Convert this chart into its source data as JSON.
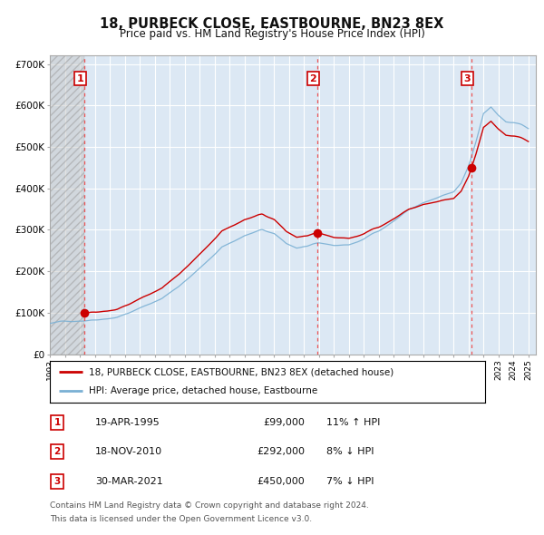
{
  "title": "18, PURBECK CLOSE, EASTBOURNE, BN23 8EX",
  "subtitle": "Price paid vs. HM Land Registry's House Price Index (HPI)",
  "transactions": [
    {
      "num": 1,
      "date_str": "19-APR-1995",
      "price": 99000,
      "pct": "11%",
      "dir": "↑",
      "x_year": 1995.3
    },
    {
      "num": 2,
      "date_str": "18-NOV-2010",
      "price": 292000,
      "pct": "8%",
      "dir": "↓",
      "x_year": 2010.9
    },
    {
      "num": 3,
      "date_str": "30-MAR-2021",
      "price": 450000,
      "pct": "7%",
      "dir": "↓",
      "x_year": 2021.2
    }
  ],
  "legend_property_label": "18, PURBECK CLOSE, EASTBOURNE, BN23 8EX (detached house)",
  "legend_hpi_label": "HPI: Average price, detached house, Eastbourne",
  "footer_line1": "Contains HM Land Registry data © Crown copyright and database right 2024.",
  "footer_line2": "This data is licensed under the Open Government Licence v3.0.",
  "ylim": [
    0,
    720000
  ],
  "yticks": [
    0,
    100000,
    200000,
    300000,
    400000,
    500000,
    600000,
    700000
  ],
  "xlim_start": 1993.0,
  "xlim_end": 2025.5,
  "hatch_end_year": 1995.3,
  "property_color": "#cc0000",
  "hpi_color": "#7ab0d4",
  "hatch_color": "#bbbbbb",
  "plot_bg": "#dce8f4",
  "grid_color": "#ffffff",
  "label_box_color": "#cc0000",
  "dashed_line_color": "#ee4444"
}
